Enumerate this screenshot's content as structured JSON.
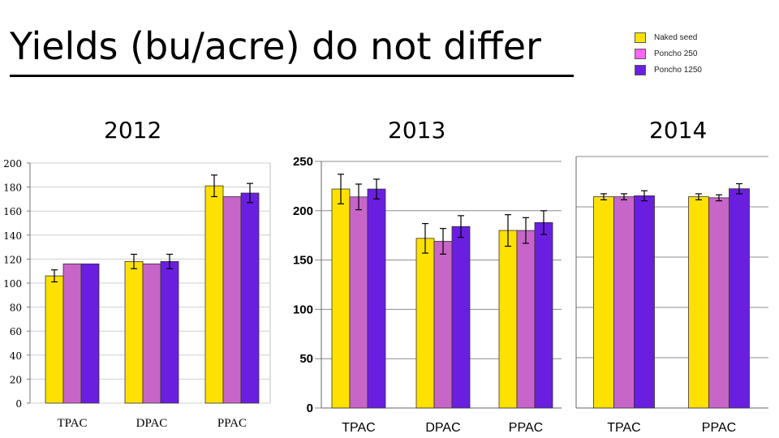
{
  "title": "Yields (bu/acre) do not differ",
  "legend": [
    {
      "label": "Naked seed",
      "color": "#FFE100"
    },
    {
      "label": "Poncho 250",
      "color": "#FF66FF"
    },
    {
      "label": "Poncho 1250",
      "color": "#6A1FE0"
    }
  ],
  "years": [
    "2012",
    "2013",
    "2014"
  ],
  "chart_data": [
    {
      "type": "bar",
      "title": "2012",
      "categories": [
        "TPAC",
        "DPAC",
        "PPAC"
      ],
      "ylim": [
        0,
        200
      ],
      "yticks": [
        0,
        20,
        40,
        60,
        80,
        100,
        120,
        140,
        160,
        180,
        200
      ],
      "series": [
        {
          "name": "Naked seed",
          "color": "#FFE100",
          "values": [
            106,
            118,
            181
          ],
          "errors": [
            5,
            6,
            9
          ]
        },
        {
          "name": "Poncho 250",
          "color": "#C865C8",
          "values": [
            116,
            116,
            172
          ],
          "errors": [
            0,
            0,
            0
          ]
        },
        {
          "name": "Poncho 1250",
          "color": "#6A1FE0",
          "values": [
            116,
            118,
            175
          ],
          "errors": [
            0,
            6,
            8
          ]
        }
      ]
    },
    {
      "type": "bar",
      "title": "2013",
      "categories": [
        "TPAC",
        "DPAC",
        "PPAC"
      ],
      "ylim": [
        0,
        250
      ],
      "yticks": [
        0,
        50,
        100,
        150,
        200,
        250
      ],
      "series": [
        {
          "name": "Naked seed",
          "color": "#FFE100",
          "values": [
            222,
            172,
            180
          ],
          "errors": [
            15,
            15,
            16
          ]
        },
        {
          "name": "Poncho 250",
          "color": "#C865C8",
          "values": [
            214,
            169,
            180
          ],
          "errors": [
            13,
            13,
            13
          ]
        },
        {
          "name": "Poncho 1250",
          "color": "#6A1FE0",
          "values": [
            222,
            184,
            188
          ],
          "errors": [
            10,
            11,
            12
          ]
        }
      ]
    },
    {
      "type": "bar",
      "title": "2014",
      "categories": [
        "TPAC",
        "PPAC"
      ],
      "ylim": [
        0,
        250
      ],
      "series": [
        {
          "name": "Naked seed",
          "color": "#FFE100",
          "values": [
            210,
            210
          ],
          "errors": [
            3,
            3
          ]
        },
        {
          "name": "Poncho 250",
          "color": "#C865C8",
          "values": [
            210,
            209
          ],
          "errors": [
            3,
            3
          ]
        },
        {
          "name": "Poncho 1250",
          "color": "#6A1FE0",
          "values": [
            211,
            218
          ],
          "errors": [
            5,
            5
          ]
        }
      ]
    }
  ]
}
